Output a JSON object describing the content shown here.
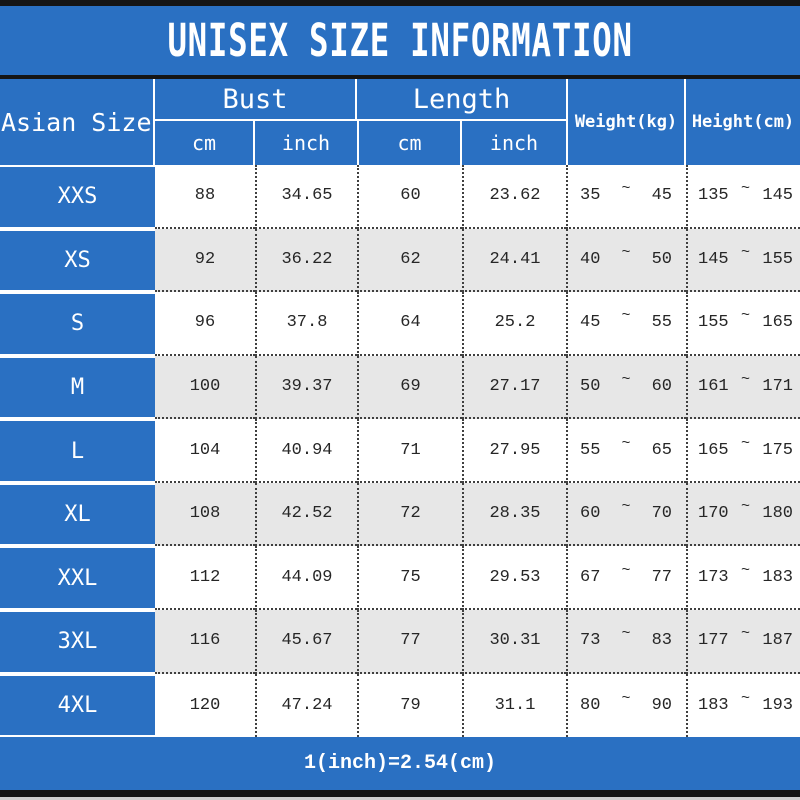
{
  "title": "UNISEX SIZE INFORMATION",
  "footer_note": "1(inch)=2.54(cm)",
  "range_separator": "~",
  "colors": {
    "blue": "#2a70c2",
    "alt_row": "#e7e7e7",
    "text": "#262626",
    "bar": "#151515"
  },
  "table": {
    "headers": {
      "asian_size": "Asian Size",
      "bust": "Bust",
      "length": "Length",
      "weight": "Weight(kg)",
      "height": "Height(cm)",
      "cm": "cm",
      "inch": "inch"
    },
    "rows": [
      {
        "size": "XXS",
        "bust_cm": "88",
        "bust_inch": "34.65",
        "length_cm": "60",
        "length_inch": "23.62",
        "weight_min": "35",
        "weight_max": "45",
        "height_min": "135",
        "height_max": "145"
      },
      {
        "size": "XS",
        "bust_cm": "92",
        "bust_inch": "36.22",
        "length_cm": "62",
        "length_inch": "24.41",
        "weight_min": "40",
        "weight_max": "50",
        "height_min": "145",
        "height_max": "155"
      },
      {
        "size": "S",
        "bust_cm": "96",
        "bust_inch": "37.8",
        "length_cm": "64",
        "length_inch": "25.2",
        "weight_min": "45",
        "weight_max": "55",
        "height_min": "155",
        "height_max": "165"
      },
      {
        "size": "M",
        "bust_cm": "100",
        "bust_inch": "39.37",
        "length_cm": "69",
        "length_inch": "27.17",
        "weight_min": "50",
        "weight_max": "60",
        "height_min": "161",
        "height_max": "171"
      },
      {
        "size": "L",
        "bust_cm": "104",
        "bust_inch": "40.94",
        "length_cm": "71",
        "length_inch": "27.95",
        "weight_min": "55",
        "weight_max": "65",
        "height_min": "165",
        "height_max": "175"
      },
      {
        "size": "XL",
        "bust_cm": "108",
        "bust_inch": "42.52",
        "length_cm": "72",
        "length_inch": "28.35",
        "weight_min": "60",
        "weight_max": "70",
        "height_min": "170",
        "height_max": "180"
      },
      {
        "size": "XXL",
        "bust_cm": "112",
        "bust_inch": "44.09",
        "length_cm": "75",
        "length_inch": "29.53",
        "weight_min": "67",
        "weight_max": "77",
        "height_min": "173",
        "height_max": "183"
      },
      {
        "size": "3XL",
        "bust_cm": "116",
        "bust_inch": "45.67",
        "length_cm": "77",
        "length_inch": "30.31",
        "weight_min": "73",
        "weight_max": "83",
        "height_min": "177",
        "height_max": "187"
      },
      {
        "size": "4XL",
        "bust_cm": "120",
        "bust_inch": "47.24",
        "length_cm": "79",
        "length_inch": "31.1",
        "weight_min": "80",
        "weight_max": "90",
        "height_min": "183",
        "height_max": "193"
      }
    ]
  }
}
